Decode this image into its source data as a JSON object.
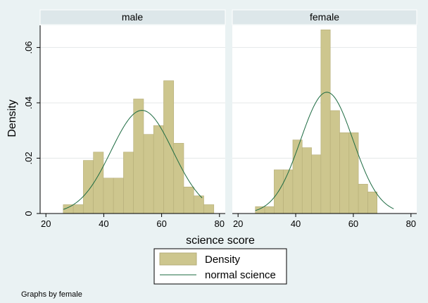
{
  "chart_data": {
    "type": "bar",
    "ylabel": "Density",
    "xlabel": "science score",
    "xlim": [
      18,
      82
    ],
    "ylim": [
      0,
      0.068
    ],
    "x_ticks": [
      20,
      40,
      60,
      80
    ],
    "y_ticks": [
      {
        "value": 0,
        "label": "0"
      },
      {
        "value": 0.02,
        "label": ".02"
      },
      {
        "value": 0.04,
        "label": ".04"
      },
      {
        "value": 0.06,
        "label": ".06"
      }
    ],
    "panels": [
      {
        "title": "male",
        "bin_start": 26,
        "bin_width": 3.47,
        "values": [
          0.0032,
          0.0032,
          0.0192,
          0.0222,
          0.0128,
          0.0128,
          0.0222,
          0.0414,
          0.0286,
          0.0318,
          0.048,
          0.0254,
          0.0096,
          0.0064,
          0.0032
        ],
        "normal": {
          "mean": 53.2,
          "sd": 10.7,
          "from": 26,
          "to": 74
        }
      },
      {
        "title": "female",
        "bin_start": 26,
        "bin_width": 3.25,
        "values": [
          0.0025,
          0.0025,
          0.0158,
          0.0158,
          0.0266,
          0.0238,
          0.0212,
          0.0664,
          0.0372,
          0.0292,
          0.0292,
          0.0106,
          0.0078
        ],
        "normal": {
          "mean": 50.8,
          "sd": 9.1,
          "from": 26,
          "to": 74
        }
      }
    ],
    "legend": [
      {
        "label": "Density",
        "kind": "bar"
      },
      {
        "label": "normal science",
        "kind": "line"
      }
    ],
    "note": "Graphs by female"
  },
  "colors": {
    "bar_fill": "#cdc68e",
    "bar_stroke": "#b5ad78",
    "curve": "#1d6b42",
    "panel_bg": "#ffffff",
    "header_bg": "#dde7ea",
    "grid": "#e4e8e9"
  }
}
